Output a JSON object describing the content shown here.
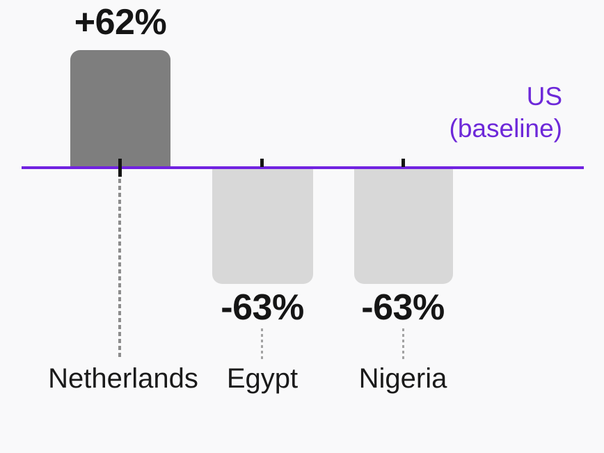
{
  "chart_data": {
    "type": "bar",
    "title": "",
    "categories": [
      "Netherlands",
      "Egypt",
      "Nigeria"
    ],
    "values": [
      62,
      -63,
      -63
    ],
    "value_labels": [
      "+62%",
      "-63%",
      "-63%"
    ],
    "unit": "%",
    "ylim": [
      -75,
      75
    ],
    "grid": false,
    "legend": false,
    "baseline": {
      "value": 0,
      "label": "US (baseline)",
      "label_line1": "US",
      "label_line2": "(baseline)",
      "position": "right-above-axis"
    },
    "colors": {
      "positive_bar": "#7e7e7e",
      "negative_bar": "#d8d8d8",
      "baseline_line": "#7122e1",
      "baseline_label": "#6d28d9",
      "text": "#151515",
      "leader_line": "#8d8d8d",
      "background": "#f9f9fa"
    }
  }
}
